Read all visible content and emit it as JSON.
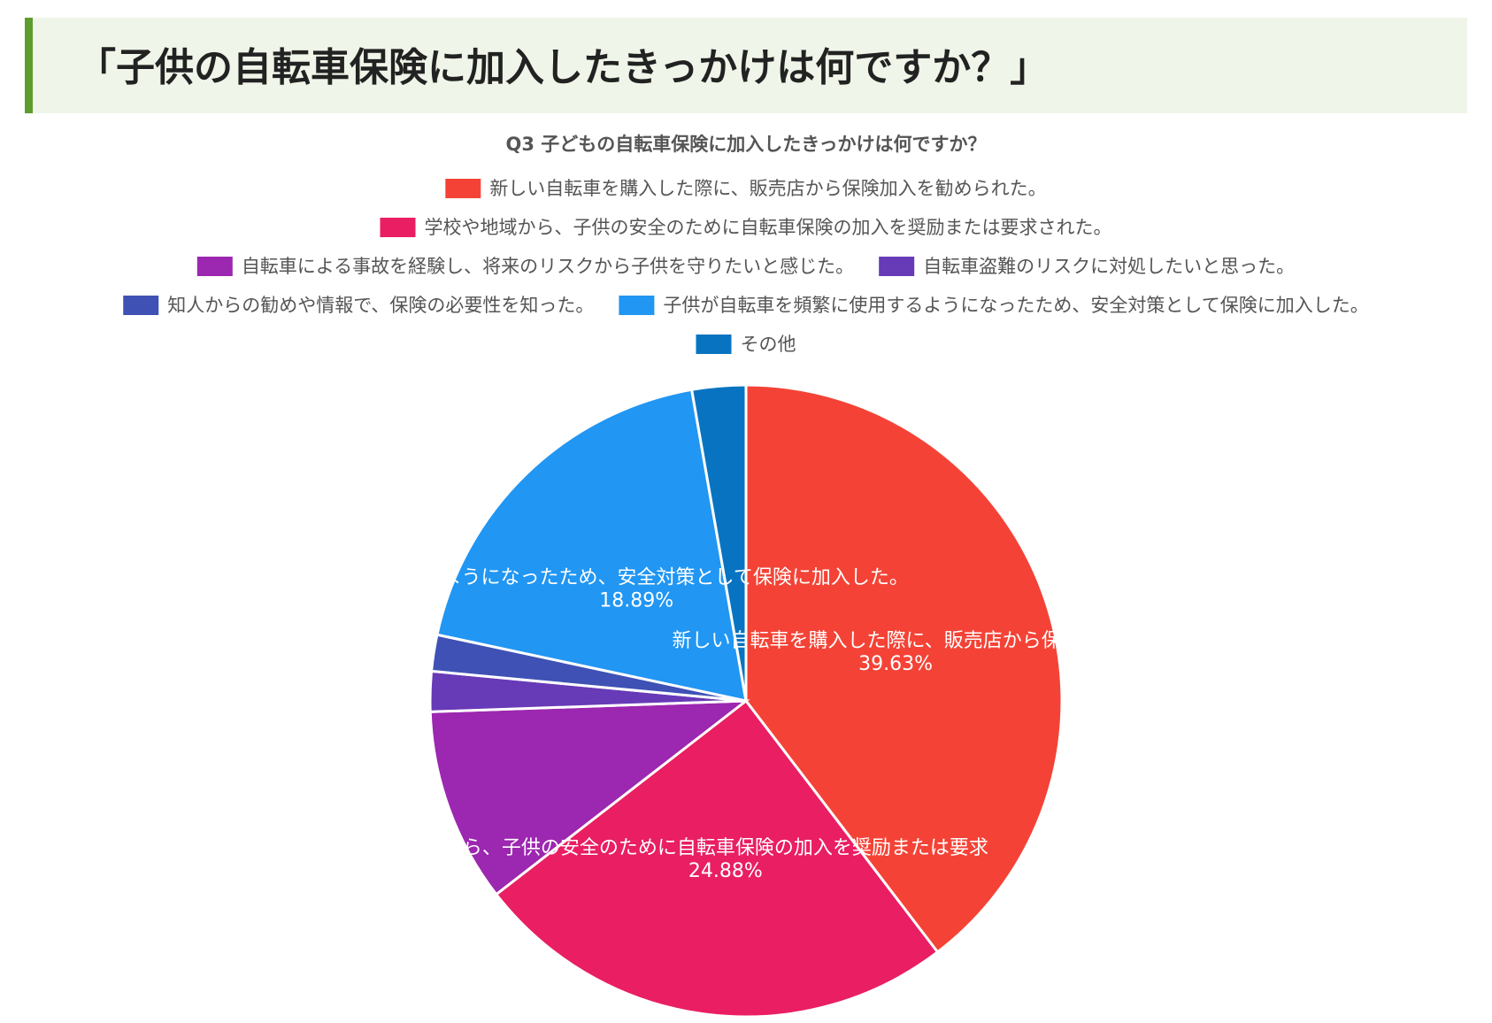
{
  "heading": {
    "title": "「子供の自転車保険に加入したきっかけは何ですか？」"
  },
  "chart_data": {
    "type": "pie",
    "title": "Q3 子どもの自転車保険に加入したきっかけは何ですか？",
    "legend_position": "top",
    "slices": [
      {
        "label": "新しい自転車を購入した際に、販売店から保険加入を勧められた。",
        "value": 39.63,
        "display": "39.63%",
        "color": "#f44336",
        "slice_text": "新しい自転車を購入した際に、販売店から保険加入"
      },
      {
        "label": "学校や地域から、子供の安全のために自転車保険の加入を奨励または要求された。",
        "value": 24.88,
        "display": "24.88%",
        "color": "#e91e63",
        "slice_text": "ら、子供の安全のために自転車保険の加入を奨励または要求"
      },
      {
        "label": "自転車による事故を経験し、将来のリスクから子供を守りたいと感じた。",
        "value": 9.94,
        "display": "",
        "color": "#9c27b0",
        "slice_text": ""
      },
      {
        "label": "自転車盗難のリスクに対処したいと思った。",
        "value": 2.05,
        "display": "",
        "color": "#673ab7",
        "slice_text": ""
      },
      {
        "label": "知人からの勧めや情報で、保険の必要性を知った。",
        "value": 1.86,
        "display": "",
        "color": "#3f51b5",
        "slice_text": ""
      },
      {
        "label": "子供が自転車を頻繁に使用するようになったため、安全対策として保険に加入した。",
        "value": 18.89,
        "display": "18.89%",
        "color": "#2196f3",
        "slice_text": "使用するようになったため、安全対策として保険に加入した。"
      },
      {
        "label": "その他",
        "value": 2.75,
        "display": "",
        "color": "#0874c1",
        "slice_text": ""
      }
    ]
  }
}
